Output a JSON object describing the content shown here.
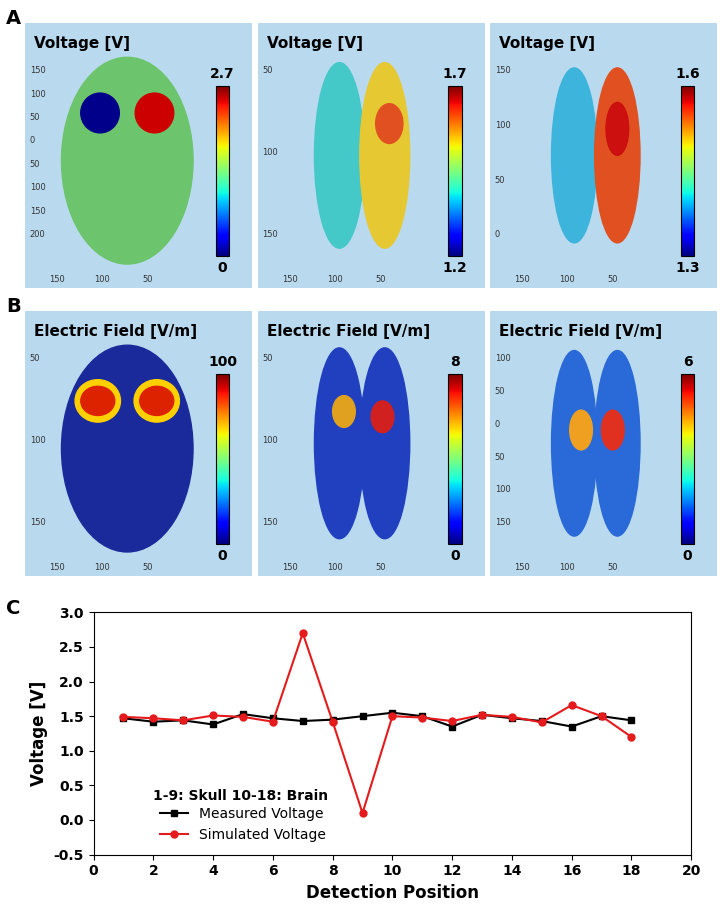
{
  "panel_labels": [
    "A",
    "B",
    "C"
  ],
  "panels": [
    {
      "images": [
        {
          "title": "Voltage [V]",
          "colorbar": {
            "range": [
              0,
              2.7
            ]
          },
          "box_ticks": {
            "left": [
              150,
              100,
              50,
              0,
              50,
              100,
              150,
              200
            ],
            "bottom": [
              150,
              100,
              50
            ]
          }
        },
        {
          "title": "Voltage [V]",
          "colorbar": {
            "range": [
              1.2,
              1.7
            ]
          },
          "box_ticks": {
            "left": [
              50,
              100,
              150
            ],
            "bottom": [
              150,
              100,
              50
            ]
          }
        },
        {
          "title": "Voltage [V]",
          "colorbar": {
            "range": [
              1.3,
              1.6
            ]
          },
          "box_ticks": {
            "left": [
              150,
              100,
              50,
              0
            ],
            "bottom": [
              150,
              100,
              50
            ]
          }
        }
      ]
    },
    {
      "images": [
        {
          "title": "Electric Field [V/m]",
          "colorbar": {
            "range": [
              0,
              100
            ]
          },
          "box_ticks": {
            "left": [
              50,
              100,
              150
            ],
            "bottom": [
              150,
              100,
              50
            ]
          }
        },
        {
          "title": "Electric Field [V/m]",
          "colorbar": {
            "range": [
              0,
              8
            ]
          },
          "box_ticks": {
            "left": [
              50,
              100,
              150
            ],
            "bottom": [
              150,
              100,
              50
            ]
          }
        },
        {
          "title": "Electric Field [V/m]",
          "colorbar": {
            "range": [
              0,
              6
            ]
          },
          "box_ticks": {
            "left": [
              100,
              50,
              0,
              50,
              100,
              150
            ],
            "bottom": [
              150,
              100,
              50
            ]
          }
        }
      ]
    }
  ],
  "chart_data": {
    "type": "line",
    "x_label": "Detection Position",
    "y_label": "Voltage [V]",
    "annotation": "1-9: Skull 10-18: Brain",
    "x": [
      1,
      2,
      3,
      4,
      5,
      6,
      7,
      8,
      9,
      10,
      11,
      12,
      13,
      14,
      15,
      16,
      17,
      18
    ],
    "series": [
      {
        "name": "Measured Voltage",
        "color": "#000000",
        "marker": "square",
        "values": [
          1.47,
          1.42,
          1.44,
          1.38,
          1.53,
          1.47,
          1.43,
          1.45,
          1.5,
          1.55,
          1.5,
          1.35,
          1.52,
          1.47,
          1.43,
          1.35,
          1.5,
          1.44
        ]
      },
      {
        "name": "Simulated Voltage",
        "color": "#e41a1c",
        "marker": "circle",
        "values": [
          1.49,
          1.47,
          1.44,
          1.51,
          1.49,
          1.42,
          2.7,
          1.42,
          0.1,
          1.5,
          1.48,
          1.43,
          1.52,
          1.49,
          1.41,
          1.66,
          1.5,
          1.2
        ]
      }
    ],
    "xlim": [
      0,
      20
    ],
    "xticks": [
      0,
      2,
      4,
      6,
      8,
      10,
      12,
      14,
      16,
      18,
      20
    ],
    "ylim": [
      -0.5,
      3.0
    ],
    "yticks": [
      -0.5,
      0.0,
      0.5,
      1.0,
      1.5,
      2.0,
      2.5,
      3.0
    ],
    "legend": "lower left",
    "grid": false
  }
}
